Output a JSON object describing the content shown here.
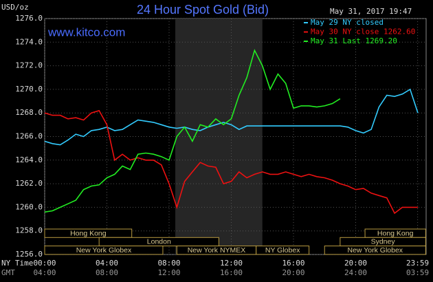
{
  "chart_data": {
    "type": "line",
    "title": "24 Hour Spot Gold (Bid)",
    "watermark": "www.kitco.com",
    "timestamp": "May 31, 2017 19:47",
    "y_label": "USD/oz",
    "x_row_labels": [
      "NY Time",
      "GMT"
    ],
    "xlim": [
      0,
      24
    ],
    "xticks": [
      {
        "value": 0,
        "label": "00:00"
      },
      {
        "value": 4,
        "label": "04:00"
      },
      {
        "value": 8,
        "label": "08:00"
      },
      {
        "value": 12,
        "label": "12:00"
      },
      {
        "value": 16,
        "label": "16:00"
      },
      {
        "value": 20,
        "label": "20:00"
      },
      {
        "value": 23.983,
        "label": "23:59"
      }
    ],
    "gmt_labels": [
      "04:00",
      "08:00",
      "12:00",
      "16:00",
      "20:00",
      "24:00",
      "03:59"
    ],
    "ylim": [
      1256,
      1276
    ],
    "yticks": [
      {
        "value": 1256,
        "label": "1256.0"
      },
      {
        "value": 1258,
        "label": "1258.0"
      },
      {
        "value": 1260,
        "label": "1260.0"
      },
      {
        "value": 1262,
        "label": "1262.0"
      },
      {
        "value": 1264,
        "label": "1264.0"
      },
      {
        "value": 1266,
        "label": "1266.0"
      },
      {
        "value": 1268,
        "label": "1268.0"
      },
      {
        "value": 1270,
        "label": "1270.0"
      },
      {
        "value": 1272,
        "label": "1272.0"
      },
      {
        "value": 1274,
        "label": "1274.0"
      },
      {
        "value": 1276,
        "label": "1276.0"
      }
    ],
    "grid": true,
    "shaded_xlim": [
      8.4,
      14.0
    ],
    "x": [
      0,
      0.5,
      1,
      1.5,
      2,
      2.5,
      3,
      3.5,
      4,
      4.5,
      5,
      5.5,
      6,
      6.5,
      7,
      7.5,
      8,
      8.5,
      9,
      9.5,
      10,
      10.5,
      11,
      11.5,
      12,
      12.5,
      13,
      13.5,
      14,
      14.5,
      15,
      15.5,
      16,
      16.5,
      17,
      17.5,
      18,
      18.5,
      19,
      19.5,
      20,
      20.5,
      21,
      21.5,
      22,
      22.5,
      23,
      23.5,
      24
    ],
    "series": [
      {
        "name": "May 29 NY closed",
        "color": "#33ccff",
        "values": [
          1265.6,
          1265.4,
          1265.3,
          1265.7,
          1266.2,
          1266.0,
          1266.5,
          1266.6,
          1266.8,
          1266.5,
          1266.6,
          1267.0,
          1267.4,
          1267.3,
          1267.2,
          1267.0,
          1266.8,
          1266.7,
          1266.8,
          1266.6,
          1266.5,
          1266.8,
          1267.0,
          1267.2,
          1267.0,
          1266.6,
          1266.9,
          1266.9,
          1266.9,
          1266.9,
          1266.9,
          1266.9,
          1266.9,
          1266.9,
          1266.9,
          1266.9,
          1266.9,
          1266.9,
          1266.9,
          1266.8,
          1266.5,
          1266.3,
          1266.6,
          1268.5,
          1269.5,
          1269.4,
          1269.6,
          1270.0,
          1268.0
        ]
      },
      {
        "name": "May 30 NY close 1262.60",
        "color": "#ee1111",
        "values": [
          1268.0,
          1267.8,
          1267.8,
          1267.5,
          1267.6,
          1267.4,
          1268.0,
          1268.2,
          1267.0,
          1264.0,
          1264.5,
          1264.0,
          1264.2,
          1264.0,
          1264.0,
          1263.6,
          1262.0,
          1260.0,
          1262.2,
          1263.0,
          1263.8,
          1263.5,
          1263.4,
          1262.0,
          1262.2,
          1263.0,
          1262.5,
          1262.8,
          1263.0,
          1262.8,
          1262.8,
          1263.0,
          1262.8,
          1262.6,
          1262.8,
          1262.6,
          1262.5,
          1262.3,
          1262.0,
          1261.8,
          1261.5,
          1261.6,
          1261.2,
          1261.0,
          1260.8,
          1259.5,
          1260.0,
          1260.0,
          1260.0
        ]
      },
      {
        "name": "May 31 Last 1269.20",
        "color": "#22ee22",
        "values": [
          1259.6,
          1259.7,
          1260.0,
          1260.3,
          1260.6,
          1261.5,
          1261.8,
          1261.9,
          1262.5,
          1262.8,
          1263.5,
          1263.2,
          1264.5,
          1264.6,
          1264.5,
          1264.3,
          1264.0,
          1266.0,
          1266.8,
          1265.6,
          1267.0,
          1266.8,
          1267.5,
          1267.0,
          1267.5,
          1269.5,
          1271.0,
          1273.3,
          1272.0,
          1270.0,
          1271.3,
          1270.5,
          1268.4,
          1268.6,
          1268.6,
          1268.5,
          1268.6,
          1268.8,
          1269.2,
          null,
          null,
          null,
          null,
          null,
          null,
          null,
          null,
          null,
          null
        ]
      }
    ],
    "session_rows": [
      [
        {
          "label": "Hong Kong",
          "start": 0,
          "end": 5.6
        },
        {
          "label": "Hong Kong",
          "start": 20.6,
          "end": 24.5
        }
      ],
      [
        {
          "label": "London",
          "start": 3.5,
          "end": 11.2
        },
        {
          "label": "Sydney",
          "start": 19.0,
          "end": 24.5
        }
      ],
      [
        {
          "label": "New York Globex",
          "start": 0,
          "end": 7.6
        },
        {
          "label": "New York NYMEX",
          "start": 8.5,
          "end": 13.6
        },
        {
          "label": "NY Globex",
          "start": 13.6,
          "end": 17.0
        },
        {
          "label": "New York Globex",
          "start": 18.0,
          "end": 24.5
        }
      ]
    ]
  }
}
